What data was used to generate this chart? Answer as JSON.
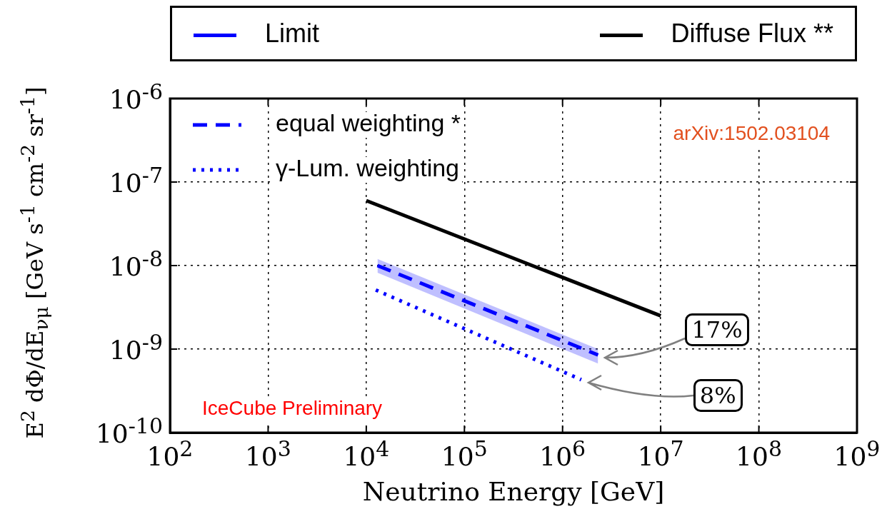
{
  "chart_data": {
    "type": "line",
    "xlabel": "Neutrino Energy [GeV]",
    "ylabel": "E$^{2}$ dΦ/dE$_{νμ}$  [GeV s$^{-1}$ cm$^{-2}$ sr$^{-1}$]",
    "log": "xy",
    "grid": true,
    "legend": "top",
    "marker": "none",
    "xlim": [
      100,
      1000000000
    ],
    "xticks": [
      {
        "value": 100,
        "label": "10$^{2}$"
      },
      {
        "value": 1000,
        "label": "10$^{3}$"
      },
      {
        "value": 10000,
        "label": "10$^{4}$"
      },
      {
        "value": 100000,
        "label": "10$^{5}$"
      },
      {
        "value": 1000000,
        "label": "10$^{6}$"
      },
      {
        "value": 10000000,
        "label": "10$^{7}$"
      },
      {
        "value": 100000000,
        "label": "10$^{8}$"
      },
      {
        "value": 1000000000,
        "label": "10$^{9}$"
      }
    ],
    "ylim": [
      1e-10,
      1e-06
    ],
    "yticks": [
      {
        "value": 1e-10,
        "label": "10$^{-10}$"
      },
      {
        "value": 1e-09,
        "label": "10$^{-9}$"
      },
      {
        "value": 1e-08,
        "label": "10$^{-8}$"
      },
      {
        "value": 1e-07,
        "label": "10$^{-7}$"
      },
      {
        "value": 1e-06,
        "label": "10$^{-6}$"
      }
    ],
    "series": [
      {
        "name": "Diffuse Flux **",
        "color": "#000000",
        "line_style": "solid",
        "x": [
          10000,
          10000000
        ],
        "values": [
          6e-08,
          2.5e-09
        ]
      },
      {
        "name": "equal weighting *",
        "color": "#0000ff",
        "line_style": "dashed",
        "x": [
          13000,
          2300000
        ],
        "values": [
          1e-08,
          8.5e-10
        ],
        "lower": [
          8.2e-09,
          6.7e-10
        ],
        "upper": [
          1.2e-08,
          1e-09
        ]
      },
      {
        "name": "γ-Lum. weighting",
        "color": "#0000ff",
        "line_style": "dotted",
        "x": [
          12500,
          1550000
        ],
        "values": [
          5.1e-09,
          4.3e-10
        ]
      }
    ],
    "annotations": [
      "arXiv:1502.03104",
      "IceCube Preliminary",
      "Limit",
      "17%",
      "8%"
    ]
  }
}
